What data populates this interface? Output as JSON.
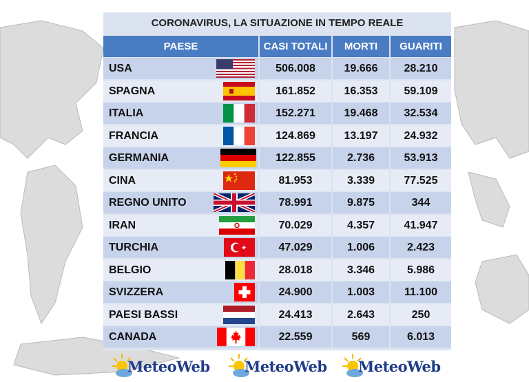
{
  "title": "CORONAVIRUS, LA SITUAZIONE IN TEMPO REALE",
  "headers": {
    "paese": "PAESE",
    "casi": "CASI TOTALI",
    "morti": "MORTI",
    "guariti": "GUARITI"
  },
  "rows": [
    {
      "paese": "USA",
      "casi": "506.008",
      "morti": "19.666",
      "guariti": "28.210",
      "flag": "usa-flag-icon"
    },
    {
      "paese": "SPAGNA",
      "casi": "161.852",
      "morti": "16.353",
      "guariti": "59.109",
      "flag": "spain-flag-icon"
    },
    {
      "paese": "ITALIA",
      "casi": "152.271",
      "morti": "19.468",
      "guariti": "32.534",
      "flag": "italy-flag-icon"
    },
    {
      "paese": "FRANCIA",
      "casi": "124.869",
      "morti": "13.197",
      "guariti": "24.932",
      "flag": "france-flag-icon"
    },
    {
      "paese": "GERMANIA",
      "casi": "122.855",
      "morti": "2.736",
      "guariti": "53.913",
      "flag": "germany-flag-icon"
    },
    {
      "paese": "CINA",
      "casi": "81.953",
      "morti": "3.339",
      "guariti": "77.525",
      "flag": "china-flag-icon"
    },
    {
      "paese": "REGNO UNITO",
      "casi": "78.991",
      "morti": "9.875",
      "guariti": "344",
      "flag": "uk-flag-icon"
    },
    {
      "paese": "IRAN",
      "casi": "70.029",
      "morti": "4.357",
      "guariti": "41.947",
      "flag": "iran-flag-icon"
    },
    {
      "paese": "TURCHIA",
      "casi": "47.029",
      "morti": "1.006",
      "guariti": "2.423",
      "flag": "turkey-flag-icon"
    },
    {
      "paese": "BELGIO",
      "casi": "28.018",
      "morti": "3.346",
      "guariti": "5.986",
      "flag": "belgium-flag-icon"
    },
    {
      "paese": "SVIZZERA",
      "casi": "24.900",
      "morti": "1.003",
      "guariti": "11.100",
      "flag": "switzerland-flag-icon"
    },
    {
      "paese": "PAESI BASSI",
      "casi": "24.413",
      "morti": "2.643",
      "guariti": "250",
      "flag": "netherlands-flag-icon"
    },
    {
      "paese": "CANADA",
      "casi": "22.559",
      "morti": "569",
      "guariti": "6.013",
      "flag": "canada-flag-icon"
    }
  ],
  "logos": [
    "MeteoWeb",
    "MeteoWeb",
    "MeteoWeb"
  ],
  "colors": {
    "header": "#4a7cc4",
    "row_dark": "#c6d3ea",
    "row_light": "#e6ebf5",
    "panel": "#dbe3f0",
    "logo_text": "#1f3c88"
  }
}
